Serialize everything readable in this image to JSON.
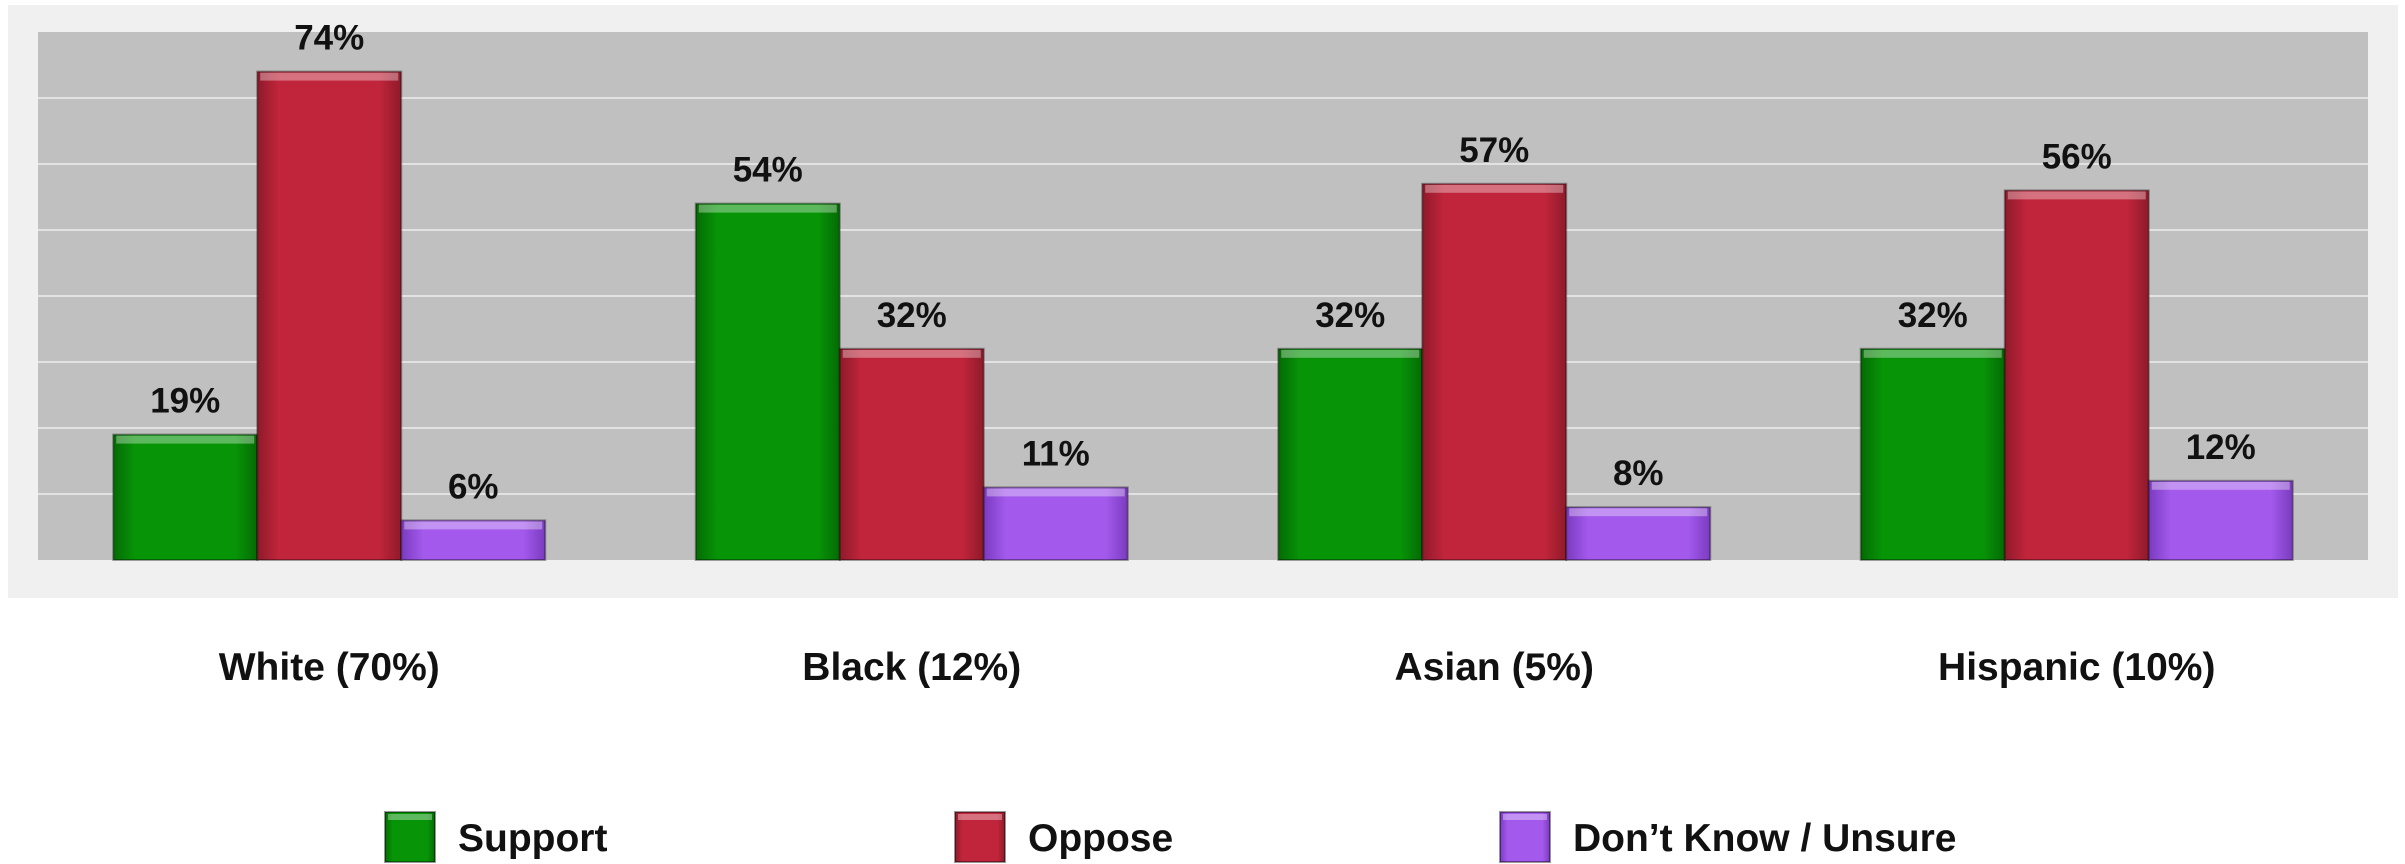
{
  "chart_data": {
    "type": "bar",
    "categories": [
      "White (70%)",
      "Black (12%)",
      "Asian (5%)",
      "Hispanic (10%)"
    ],
    "series": [
      {
        "name": "Support",
        "values": [
          19,
          54,
          32,
          32
        ],
        "labels": [
          "19%",
          "54%",
          "32%",
          "32%"
        ],
        "color": "#079407"
      },
      {
        "name": "Oppose",
        "values": [
          74,
          32,
          57,
          56
        ],
        "labels": [
          "74%",
          "32%",
          "57%",
          "56%"
        ],
        "color": "#c0253b"
      },
      {
        "name": "Don’t Know / Unsure",
        "values": [
          6,
          11,
          8,
          12
        ],
        "labels": [
          "6%",
          "11%",
          "8%",
          "12%"
        ],
        "color": "#a259ec"
      }
    ],
    "ylim": [
      0,
      80
    ],
    "grid": true,
    "legend_position": "bottom",
    "plot_background": "#c0c0c0",
    "frame_background": "#f0f0f0"
  }
}
